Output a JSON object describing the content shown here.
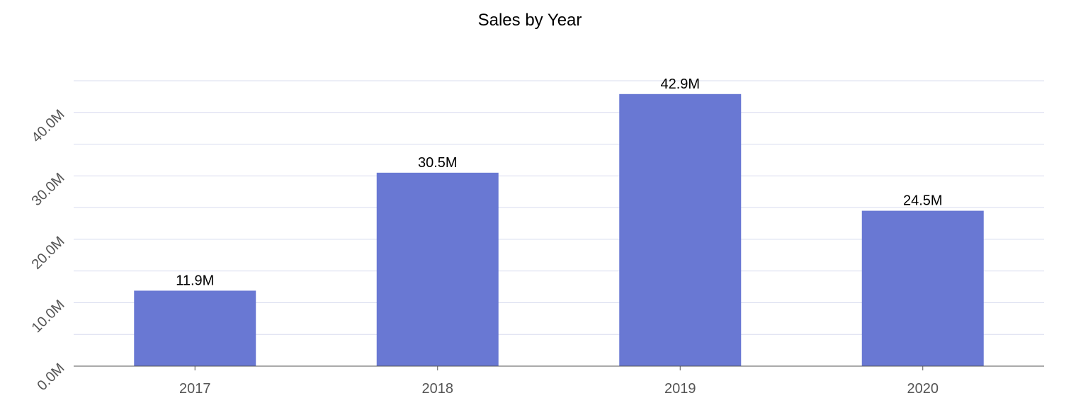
{
  "chart_data": {
    "type": "bar",
    "title": "Sales by Year",
    "categories": [
      "2017",
      "2018",
      "2019",
      "2020"
    ],
    "values": [
      11.9,
      30.5,
      42.9,
      24.5
    ],
    "value_labels": [
      "11.9M",
      "30.5M",
      "42.9M",
      "24.5M"
    ],
    "unit": "M",
    "ylim": [
      0,
      45
    ],
    "yticks": [
      0,
      10,
      20,
      30,
      40
    ],
    "ytick_labels": [
      "0.0M",
      "10.0M",
      "20.0M",
      "30.0M",
      "40.0M"
    ],
    "minor_grid_step": 5,
    "grid": true,
    "legend": "none",
    "xlabel": "",
    "ylabel": ""
  },
  "colors": {
    "bar": "#6978d3",
    "grid": "#d8dcef",
    "axis": "#555555",
    "title": "#000000"
  }
}
